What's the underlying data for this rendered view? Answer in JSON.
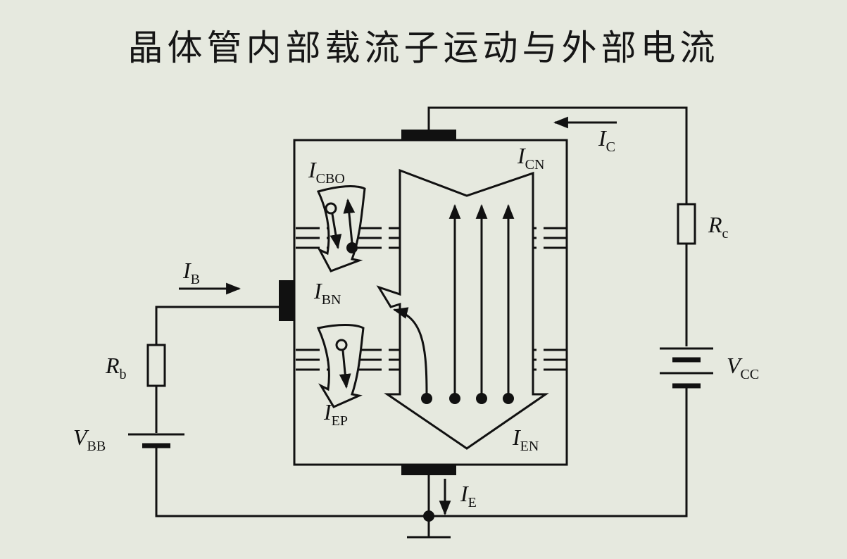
{
  "title": "晶体管内部载流子运动与外部电流",
  "labels": {
    "ic": {
      "main": "I",
      "sub": "C"
    },
    "icn": {
      "main": "I",
      "sub": "CN"
    },
    "icbo": {
      "main": "I",
      "sub": "CBO"
    },
    "ib": {
      "main": "I",
      "sub": "B"
    },
    "ibn": {
      "main": "I",
      "sub": "BN"
    },
    "iep": {
      "main": "I",
      "sub": "EP"
    },
    "ien": {
      "main": "I",
      "sub": "EN"
    },
    "ie": {
      "main": "I",
      "sub": "E"
    },
    "rc": {
      "main": "R",
      "sub": "c"
    },
    "rb": {
      "main": "R",
      "sub": "b"
    },
    "vcc": {
      "main": "V",
      "sub": "CC"
    },
    "vbb": {
      "main": "V",
      "sub": "BB"
    }
  }
}
